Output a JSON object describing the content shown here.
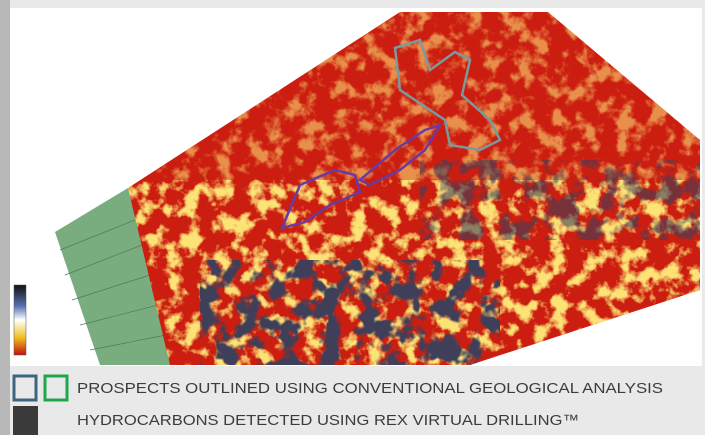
{
  "legend": {
    "items": [
      {
        "label": "PROSPECTS OUTLINED USING CONVENTIONAL GEOLOGICAL ANALYSIS"
      },
      {
        "label": "HYDROCARBONS DETECTED USING REX VIRTUAL DRILLING™"
      }
    ]
  }
}
